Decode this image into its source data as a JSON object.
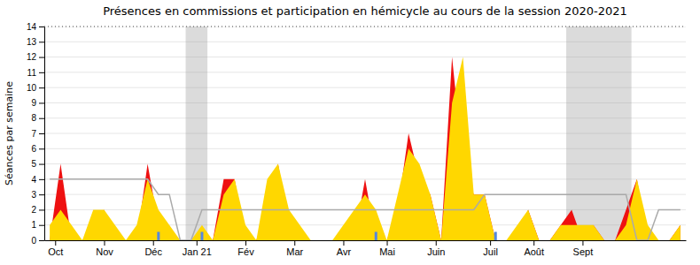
{
  "chart_data": {
    "type": "area",
    "title": "Présences en commissions et participation en hémicycle au cours de la session 2020-2021",
    "ylabel": "Séances par semaine",
    "x": [
      0,
      1,
      2,
      3,
      4,
      5,
      6,
      7,
      8,
      9,
      10,
      11,
      12,
      13,
      14,
      15,
      16,
      17,
      18,
      19,
      20,
      21,
      22,
      23,
      24,
      25,
      26,
      27,
      28,
      29,
      30,
      31,
      32,
      33,
      34,
      35,
      36,
      37,
      38,
      39,
      40,
      41,
      42,
      43,
      44,
      45,
      46,
      47,
      48,
      49,
      50,
      51,
      52,
      53,
      54,
      55,
      56,
      57,
      58
    ],
    "xlim": [
      -0.5,
      58.5
    ],
    "xticks": [
      {
        "value": 0.5,
        "label": "Oct"
      },
      {
        "value": 5,
        "label": "Nov"
      },
      {
        "value": 9.5,
        "label": "Déc"
      },
      {
        "value": 13.5,
        "label": "Jan 21"
      },
      {
        "value": 18,
        "label": "Fév"
      },
      {
        "value": 22.5,
        "label": "Mar"
      },
      {
        "value": 27,
        "label": "Avr"
      },
      {
        "value": 31,
        "label": "Mai"
      },
      {
        "value": 35.5,
        "label": "Juin"
      },
      {
        "value": 40.5,
        "label": "Juil"
      },
      {
        "value": 44.5,
        "label": "Août"
      },
      {
        "value": 49,
        "label": "Sept"
      }
    ],
    "ylim": [
      0,
      14
    ],
    "yticks": [
      0,
      1,
      2,
      3,
      4,
      5,
      6,
      7,
      8,
      9,
      10,
      11,
      12,
      13,
      14
    ],
    "grid": true,
    "series": [
      {
        "type": "area",
        "color": "#EE1111",
        "values": [
          0,
          5,
          0,
          0,
          1,
          2,
          0,
          0,
          0,
          5,
          1,
          0,
          0,
          0,
          0,
          0,
          4,
          4,
          0,
          0,
          2,
          5,
          1,
          0,
          0,
          0,
          0,
          0,
          0,
          4,
          0,
          0,
          2,
          7,
          4,
          3,
          0,
          12,
          5,
          3,
          3,
          0,
          0,
          0,
          2,
          0,
          0,
          1,
          2,
          0,
          1,
          0,
          0,
          2,
          4,
          0,
          0,
          0,
          1
        ]
      },
      {
        "type": "area",
        "color": "#FFD700",
        "values": [
          1,
          2,
          1,
          0,
          2,
          2,
          1,
          0,
          1,
          4,
          2,
          1,
          0,
          0,
          1,
          0,
          3,
          4,
          1,
          0,
          4,
          5,
          2,
          1,
          0,
          0,
          0,
          1,
          2,
          3,
          2,
          0,
          3,
          6,
          5,
          3,
          0,
          9,
          12,
          3,
          3,
          0,
          0,
          1,
          2,
          0,
          0,
          1,
          1,
          1,
          1,
          0,
          0,
          1,
          4,
          1,
          0,
          0,
          1
        ]
      },
      {
        "type": "line",
        "color": "#aaaaaa",
        "values": [
          4,
          4,
          4,
          4,
          4,
          4,
          4,
          4,
          4,
          4,
          3,
          3,
          0,
          0,
          2,
          2,
          2,
          2,
          2,
          2,
          2,
          2,
          2,
          2,
          2,
          2,
          2,
          2,
          2,
          2,
          2,
          2,
          2,
          2,
          2,
          2,
          2,
          2,
          2,
          2,
          3,
          3,
          3,
          3,
          3,
          3,
          3,
          3,
          3,
          3,
          3,
          3,
          3,
          3,
          0,
          0,
          2,
          2,
          2
        ]
      }
    ],
    "shaded_regions": {
      "color": "#999999",
      "ranges": [
        [
          12.5,
          14.5
        ],
        [
          47.5,
          53.5
        ]
      ]
    },
    "event_markers": {
      "color": "#5588dd",
      "x": [
        10,
        14,
        30,
        41
      ],
      "y": [
        0,
        0.55
      ]
    },
    "reference_line": {
      "y": 14,
      "color": "#444444",
      "line_style": "dotted"
    }
  }
}
